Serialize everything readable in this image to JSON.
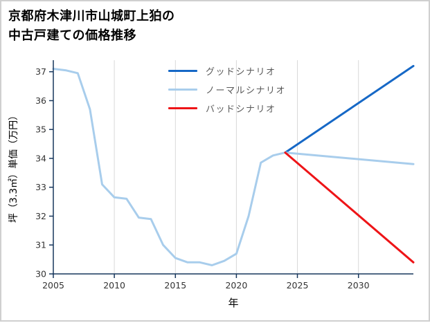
{
  "header": {
    "title_line1": "京都府木津川市山城町上狛の",
    "title_line2": "中古戸建ての価格推移"
  },
  "chart_data": {
    "type": "line",
    "title": "京都府木津川市山城町上狛の中古戸建ての価格推移",
    "xlabel": "年",
    "ylabel": "坪（3.3㎡）単価（万円）",
    "xlim": [
      2005,
      2034.5
    ],
    "ylim": [
      30,
      37.4
    ],
    "xticks": [
      2005,
      2010,
      2015,
      2020,
      2025,
      2030
    ],
    "yticks": [
      30,
      31,
      32,
      33,
      34,
      35,
      36,
      37
    ],
    "grid": "vertical-only",
    "legend_position": "upper-center",
    "colors": {
      "axis": "#16365c",
      "grid": "#d9d9d9",
      "tick_label": "#333333",
      "title": "#000000",
      "legend_text": "#595959"
    },
    "series": [
      {
        "id": "history",
        "color": "#a8cdec",
        "width": 3,
        "in_legend": false,
        "x": [
          2005,
          2006,
          2007,
          2008,
          2009,
          2010,
          2011,
          2012,
          2013,
          2014,
          2015,
          2016,
          2017,
          2018,
          2019,
          2020,
          2021,
          2022,
          2023,
          2024
        ],
        "y": [
          37.1,
          37.05,
          36.95,
          35.7,
          33.1,
          32.65,
          32.6,
          31.95,
          31.9,
          31.0,
          30.55,
          30.4,
          30.4,
          30.3,
          30.45,
          30.7,
          32.0,
          33.85,
          34.1,
          34.2
        ]
      },
      {
        "id": "good",
        "label": "グッドシナリオ",
        "color": "#1668c6",
        "width": 3,
        "in_legend": true,
        "x": [
          2024,
          2034.5
        ],
        "y": [
          34.2,
          37.2
        ]
      },
      {
        "id": "normal",
        "label": "ノーマルシナリオ",
        "color": "#a8cdec",
        "width": 3,
        "in_legend": true,
        "x": [
          2024,
          2034.5
        ],
        "y": [
          34.2,
          33.8
        ]
      },
      {
        "id": "bad",
        "label": "バッドシナリオ",
        "color": "#ee1417",
        "width": 3,
        "in_legend": true,
        "x": [
          2024,
          2034.5
        ],
        "y": [
          34.2,
          30.4
        ]
      }
    ]
  }
}
